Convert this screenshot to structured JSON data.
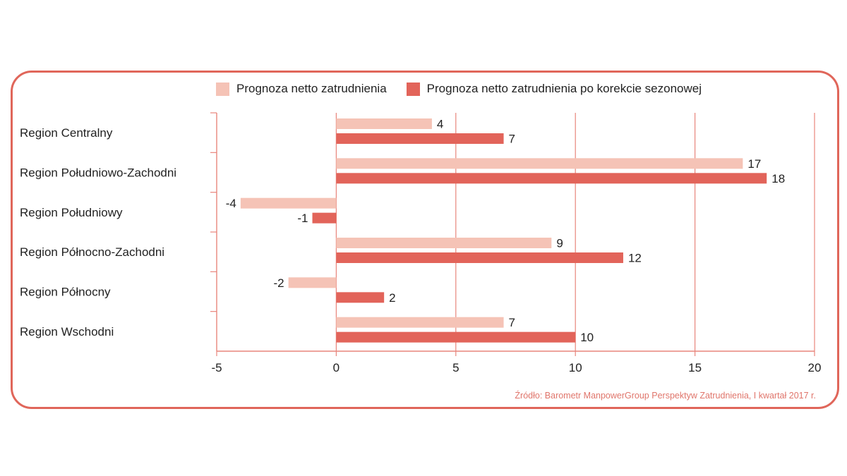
{
  "legend": {
    "series_light_label": "Prognoza netto zatrudnienia",
    "series_dark_label": "Prognoza netto zatrudnienia po korekcie sezonowej"
  },
  "source": "Źródło: Barometr ManpowerGroup Perspektyw Zatrudnienia, I kwartał 2017 r.",
  "colors": {
    "frame": "#e0665a",
    "light": "#f5c3b6",
    "dark": "#e2645a",
    "grid": "#e8857c"
  },
  "chart_data": {
    "type": "bar",
    "orientation": "horizontal",
    "title": "",
    "xlabel": "",
    "ylabel": "",
    "categories": [
      "Region Centralny",
      "Region Południowo-Zachodni",
      "Region Południowy",
      "Region Północno-Zachodni",
      "Region Północny",
      "Region Wschodni"
    ],
    "series": [
      {
        "name": "Prognoza netto zatrudnienia",
        "values": [
          4,
          17,
          -4,
          9,
          -2,
          7
        ]
      },
      {
        "name": "Prognoza netto zatrudnienia po korekcie sezonowej",
        "values": [
          7,
          18,
          -1,
          12,
          2,
          10
        ]
      }
    ],
    "xlim": [
      -5,
      20
    ],
    "xticks": [
      "-5",
      "0",
      "5",
      "10",
      "15",
      "20"
    ],
    "xtick_values": [
      -5,
      0,
      5,
      10,
      15,
      20
    ],
    "grid": true,
    "legend_position": "top"
  }
}
